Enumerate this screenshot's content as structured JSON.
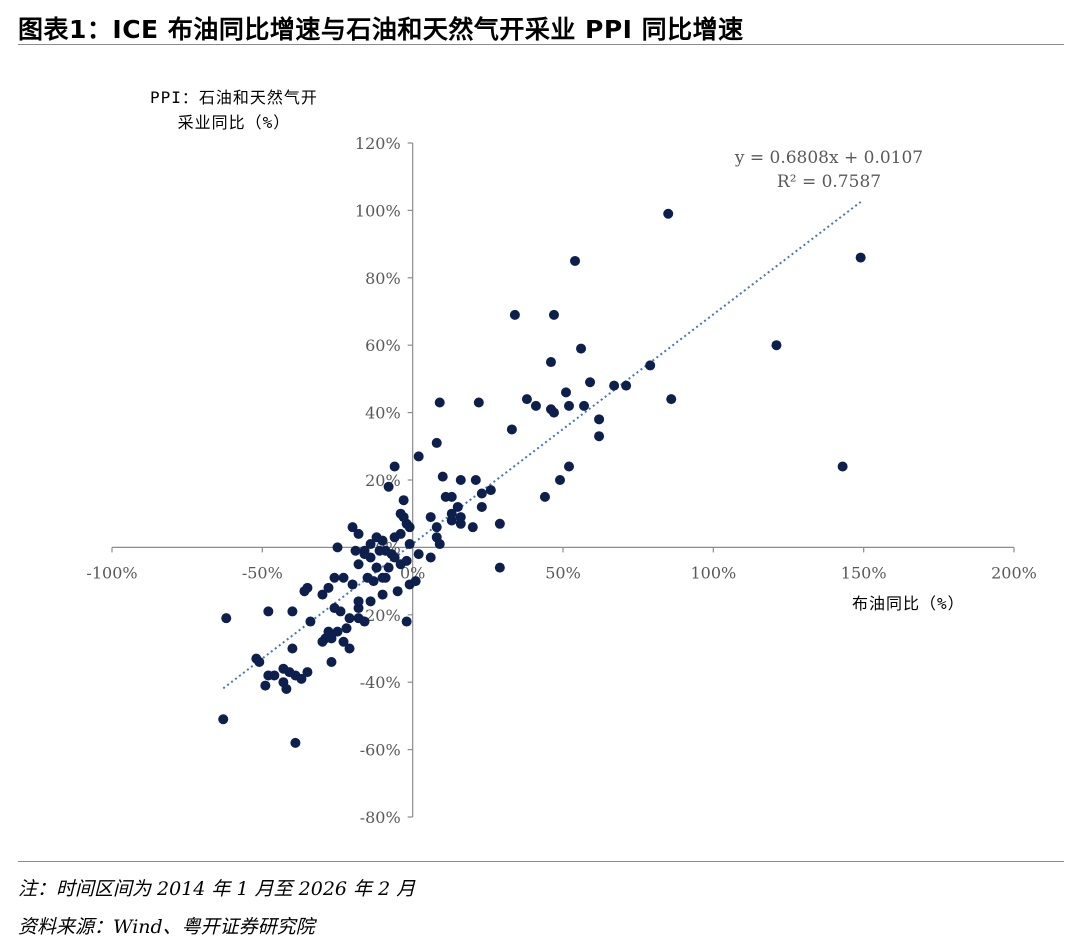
{
  "page": {
    "title": "图表1：ICE 布油同比增速与石油和天然气开采业 PPI 同比增速",
    "note": "注：时间区间为 2014 年 1 月至 2026 年 2 月",
    "source": "资料来源：Wind、粤开证券研究院"
  },
  "chart_data": {
    "type": "scatter",
    "ylabel_line1": "PPI：石油和天然气开",
    "ylabel_line2": "采业同比（%）",
    "xlabel": "布油同比（%）",
    "xlim": [
      -100,
      200
    ],
    "ylim": [
      -80,
      120
    ],
    "x_ticks": [
      {
        "v": -100,
        "label": "-100%"
      },
      {
        "v": -50,
        "label": "-50%"
      },
      {
        "v": 0,
        "label": "0%"
      },
      {
        "v": 50,
        "label": "50%"
      },
      {
        "v": 100,
        "label": "100%"
      },
      {
        "v": 150,
        "label": "150%"
      },
      {
        "v": 200,
        "label": "200%"
      }
    ],
    "y_ticks": [
      {
        "v": 120,
        "label": "120%"
      },
      {
        "v": 100,
        "label": "100%"
      },
      {
        "v": 80,
        "label": "80%"
      },
      {
        "v": 60,
        "label": "60%"
      },
      {
        "v": 40,
        "label": "40%"
      },
      {
        "v": 20,
        "label": "20%"
      },
      {
        "v": 0,
        "label": "0%"
      },
      {
        "v": -20,
        "label": "-20%"
      },
      {
        "v": -40,
        "label": "-40%"
      },
      {
        "v": -60,
        "label": "-60%"
      },
      {
        "v": -80,
        "label": "-80%"
      }
    ],
    "trendline": {
      "slope": 0.6808,
      "intercept": 1.07,
      "x_range": [
        -63,
        149
      ],
      "equation": "y = 0.6808x + 0.0107",
      "r2": "R² = 0.7587"
    },
    "point_color": "#0d1f4d",
    "trend_color": "#4a74b5",
    "points": [
      [
        85,
        99
      ],
      [
        149,
        86
      ],
      [
        54,
        85
      ],
      [
        121,
        60
      ],
      [
        34,
        69
      ],
      [
        47,
        69
      ],
      [
        56,
        59
      ],
      [
        46,
        55
      ],
      [
        79,
        54
      ],
      [
        71,
        48
      ],
      [
        67,
        48
      ],
      [
        59,
        49
      ],
      [
        86,
        44
      ],
      [
        51,
        46
      ],
      [
        38,
        44
      ],
      [
        41,
        42
      ],
      [
        52,
        42
      ],
      [
        57,
        42
      ],
      [
        46,
        41
      ],
      [
        47,
        40
      ],
      [
        62,
        38
      ],
      [
        9,
        43
      ],
      [
        22,
        43
      ],
      [
        33,
        35
      ],
      [
        62,
        33
      ],
      [
        8,
        31
      ],
      [
        143,
        24
      ],
      [
        52,
        24
      ],
      [
        49,
        20
      ],
      [
        44,
        15
      ],
      [
        2,
        27
      ],
      [
        -6,
        24
      ],
      [
        10,
        21
      ],
      [
        16,
        20
      ],
      [
        21,
        20
      ],
      [
        26,
        17
      ],
      [
        23,
        16
      ],
      [
        -8,
        18
      ],
      [
        11,
        15
      ],
      [
        13,
        15
      ],
      [
        15,
        12
      ],
      [
        23,
        12
      ],
      [
        -3,
        14
      ],
      [
        16,
        9
      ],
      [
        6,
        9
      ],
      [
        13,
        10
      ],
      [
        13,
        8
      ],
      [
        16,
        7
      ],
      [
        20,
        6
      ],
      [
        29,
        7
      ],
      [
        8,
        6
      ],
      [
        -4,
        10
      ],
      [
        -3,
        9
      ],
      [
        -2,
        7
      ],
      [
        -1,
        6
      ],
      [
        -20,
        6
      ],
      [
        -18,
        4
      ],
      [
        8,
        3
      ],
      [
        -12,
        3
      ],
      [
        -4,
        4
      ],
      [
        -6,
        3
      ],
      [
        -10,
        2
      ],
      [
        9,
        1
      ],
      [
        -1,
        1
      ],
      [
        -9,
        -1
      ],
      [
        -11,
        -1
      ],
      [
        -16,
        -1
      ],
      [
        -25,
        0
      ],
      [
        -14,
        1
      ],
      [
        -19,
        -1
      ],
      [
        -7,
        -2
      ],
      [
        -6,
        -3
      ],
      [
        2,
        -2
      ],
      [
        6,
        -3
      ],
      [
        -2,
        -4
      ],
      [
        -4,
        -5
      ],
      [
        -8,
        -6
      ],
      [
        -12,
        -6
      ],
      [
        -14,
        -3
      ],
      [
        -16,
        -2
      ],
      [
        -18,
        -5
      ],
      [
        -12,
        -6
      ],
      [
        29,
        -6
      ],
      [
        -10,
        -9
      ],
      [
        -15,
        -9
      ],
      [
        -23,
        -9
      ],
      [
        -26,
        -9
      ],
      [
        -20,
        -11
      ],
      [
        -13,
        -10
      ],
      [
        -9,
        -9
      ],
      [
        -1,
        -11
      ],
      [
        1,
        -10
      ],
      [
        -5,
        -13
      ],
      [
        -10,
        -14
      ],
      [
        -14,
        -16
      ],
      [
        -18,
        -18
      ],
      [
        -24,
        -19
      ],
      [
        -21,
        -21
      ],
      [
        -18,
        -21
      ],
      [
        -16,
        -22
      ],
      [
        -22,
        -24
      ],
      [
        -28,
        -25
      ],
      [
        -27,
        -27
      ],
      [
        -23,
        -28
      ],
      [
        -29,
        -27
      ],
      [
        -30,
        -28
      ],
      [
        -21,
        -30
      ],
      [
        -27,
        -34
      ],
      [
        -35,
        -37
      ],
      [
        -37,
        -39
      ],
      [
        -39,
        -38
      ],
      [
        -41,
        -37
      ],
      [
        -43,
        -36
      ],
      [
        -48,
        -38
      ],
      [
        -46,
        -38
      ],
      [
        -49,
        -41
      ],
      [
        -43,
        -40
      ],
      [
        -42,
        -42
      ],
      [
        -51,
        -34
      ],
      [
        -52,
        -33
      ],
      [
        -40,
        -30
      ],
      [
        -25,
        -25
      ],
      [
        -18,
        -16
      ],
      [
        -36,
        -13
      ],
      [
        -30,
        -14
      ],
      [
        -35,
        -12
      ],
      [
        -28,
        -12
      ],
      [
        -40,
        -19
      ],
      [
        -48,
        -19
      ],
      [
        -62,
        -21
      ],
      [
        -63,
        -51
      ],
      [
        -39,
        -58
      ],
      [
        -2,
        -22
      ],
      [
        -34,
        -22
      ],
      [
        -26,
        -18
      ]
    ]
  }
}
